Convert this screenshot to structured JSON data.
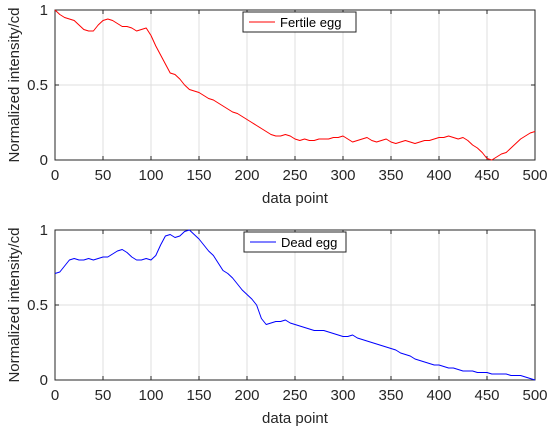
{
  "chart_data": [
    {
      "type": "line",
      "xlabel": "data point",
      "ylabel": "Normalized intensity/cd",
      "xlim": [
        0,
        500
      ],
      "ylim": [
        0,
        1
      ],
      "xticks": [
        0,
        50,
        100,
        150,
        200,
        250,
        300,
        350,
        400,
        450,
        500
      ],
      "yticks": [
        0,
        0.5,
        1
      ],
      "ytick_labels": [
        "0",
        "0.5",
        "1"
      ],
      "grid": true,
      "legend_position": "top-center",
      "colors": {
        "line": "#ff0000"
      },
      "series": [
        {
          "name": "Fertile egg",
          "x": [
            0,
            5,
            10,
            15,
            20,
            25,
            30,
            35,
            40,
            45,
            50,
            55,
            60,
            65,
            70,
            75,
            80,
            85,
            90,
            95,
            100,
            105,
            110,
            115,
            120,
            125,
            130,
            135,
            140,
            145,
            150,
            155,
            160,
            165,
            170,
            175,
            180,
            185,
            190,
            195,
            200,
            205,
            210,
            215,
            220,
            225,
            230,
            235,
            240,
            245,
            250,
            255,
            260,
            265,
            270,
            275,
            280,
            285,
            290,
            295,
            300,
            305,
            310,
            315,
            320,
            325,
            330,
            335,
            340,
            345,
            350,
            355,
            360,
            365,
            370,
            375,
            380,
            385,
            390,
            395,
            400,
            405,
            410,
            415,
            420,
            425,
            430,
            435,
            440,
            445,
            450,
            455,
            460,
            465,
            470,
            475,
            480,
            485,
            490,
            495,
            500
          ],
          "values": [
            1.0,
            0.97,
            0.95,
            0.94,
            0.93,
            0.9,
            0.87,
            0.86,
            0.86,
            0.9,
            0.93,
            0.94,
            0.93,
            0.91,
            0.89,
            0.89,
            0.88,
            0.86,
            0.87,
            0.88,
            0.83,
            0.76,
            0.7,
            0.64,
            0.58,
            0.57,
            0.54,
            0.5,
            0.47,
            0.46,
            0.45,
            0.43,
            0.41,
            0.4,
            0.38,
            0.36,
            0.34,
            0.32,
            0.31,
            0.29,
            0.27,
            0.25,
            0.23,
            0.21,
            0.19,
            0.17,
            0.16,
            0.16,
            0.17,
            0.16,
            0.14,
            0.13,
            0.14,
            0.13,
            0.13,
            0.14,
            0.14,
            0.14,
            0.15,
            0.15,
            0.16,
            0.14,
            0.12,
            0.13,
            0.14,
            0.15,
            0.13,
            0.12,
            0.13,
            0.14,
            0.12,
            0.11,
            0.12,
            0.13,
            0.12,
            0.11,
            0.12,
            0.13,
            0.13,
            0.14,
            0.15,
            0.15,
            0.16,
            0.15,
            0.14,
            0.15,
            0.13,
            0.1,
            0.08,
            0.05,
            0.01,
            0.0,
            0.02,
            0.04,
            0.05,
            0.08,
            0.11,
            0.14,
            0.16,
            0.18,
            0.19
          ]
        }
      ]
    },
    {
      "type": "line",
      "xlabel": "data point",
      "ylabel": "Normalized intensity/cd",
      "xlim": [
        0,
        500
      ],
      "ylim": [
        0,
        1
      ],
      "xticks": [
        0,
        50,
        100,
        150,
        200,
        250,
        300,
        350,
        400,
        450,
        500
      ],
      "yticks": [
        0,
        0.5,
        1
      ],
      "ytick_labels": [
        "0",
        "0.5",
        "1"
      ],
      "grid": true,
      "legend_position": "top-center",
      "colors": {
        "line": "#0000ff"
      },
      "series": [
        {
          "name": "Dead egg",
          "x": [
            0,
            5,
            10,
            15,
            20,
            25,
            30,
            35,
            40,
            45,
            50,
            55,
            60,
            65,
            70,
            75,
            80,
            85,
            90,
            95,
            100,
            105,
            110,
            115,
            120,
            125,
            130,
            135,
            140,
            145,
            150,
            155,
            160,
            165,
            170,
            175,
            180,
            185,
            190,
            195,
            200,
            205,
            210,
            215,
            220,
            225,
            230,
            235,
            240,
            245,
            250,
            255,
            260,
            265,
            270,
            275,
            280,
            285,
            290,
            295,
            300,
            305,
            310,
            315,
            320,
            325,
            330,
            335,
            340,
            345,
            350,
            355,
            360,
            365,
            370,
            375,
            380,
            385,
            390,
            395,
            400,
            405,
            410,
            415,
            420,
            425,
            430,
            435,
            440,
            445,
            450,
            455,
            460,
            465,
            470,
            475,
            480,
            485,
            490,
            495,
            500
          ],
          "values": [
            0.71,
            0.72,
            0.76,
            0.8,
            0.81,
            0.8,
            0.8,
            0.81,
            0.8,
            0.81,
            0.82,
            0.82,
            0.84,
            0.86,
            0.87,
            0.85,
            0.82,
            0.8,
            0.8,
            0.81,
            0.8,
            0.83,
            0.9,
            0.96,
            0.97,
            0.95,
            0.96,
            0.99,
            1.0,
            0.97,
            0.94,
            0.9,
            0.86,
            0.83,
            0.78,
            0.73,
            0.71,
            0.68,
            0.64,
            0.6,
            0.57,
            0.54,
            0.5,
            0.41,
            0.37,
            0.38,
            0.39,
            0.39,
            0.4,
            0.38,
            0.37,
            0.36,
            0.35,
            0.34,
            0.33,
            0.33,
            0.33,
            0.32,
            0.31,
            0.3,
            0.29,
            0.29,
            0.3,
            0.28,
            0.27,
            0.26,
            0.25,
            0.24,
            0.23,
            0.22,
            0.21,
            0.2,
            0.18,
            0.17,
            0.16,
            0.14,
            0.13,
            0.12,
            0.11,
            0.1,
            0.1,
            0.09,
            0.08,
            0.08,
            0.07,
            0.06,
            0.06,
            0.06,
            0.05,
            0.05,
            0.05,
            0.04,
            0.04,
            0.04,
            0.04,
            0.03,
            0.03,
            0.03,
            0.02,
            0.01,
            0.0
          ]
        }
      ]
    }
  ]
}
